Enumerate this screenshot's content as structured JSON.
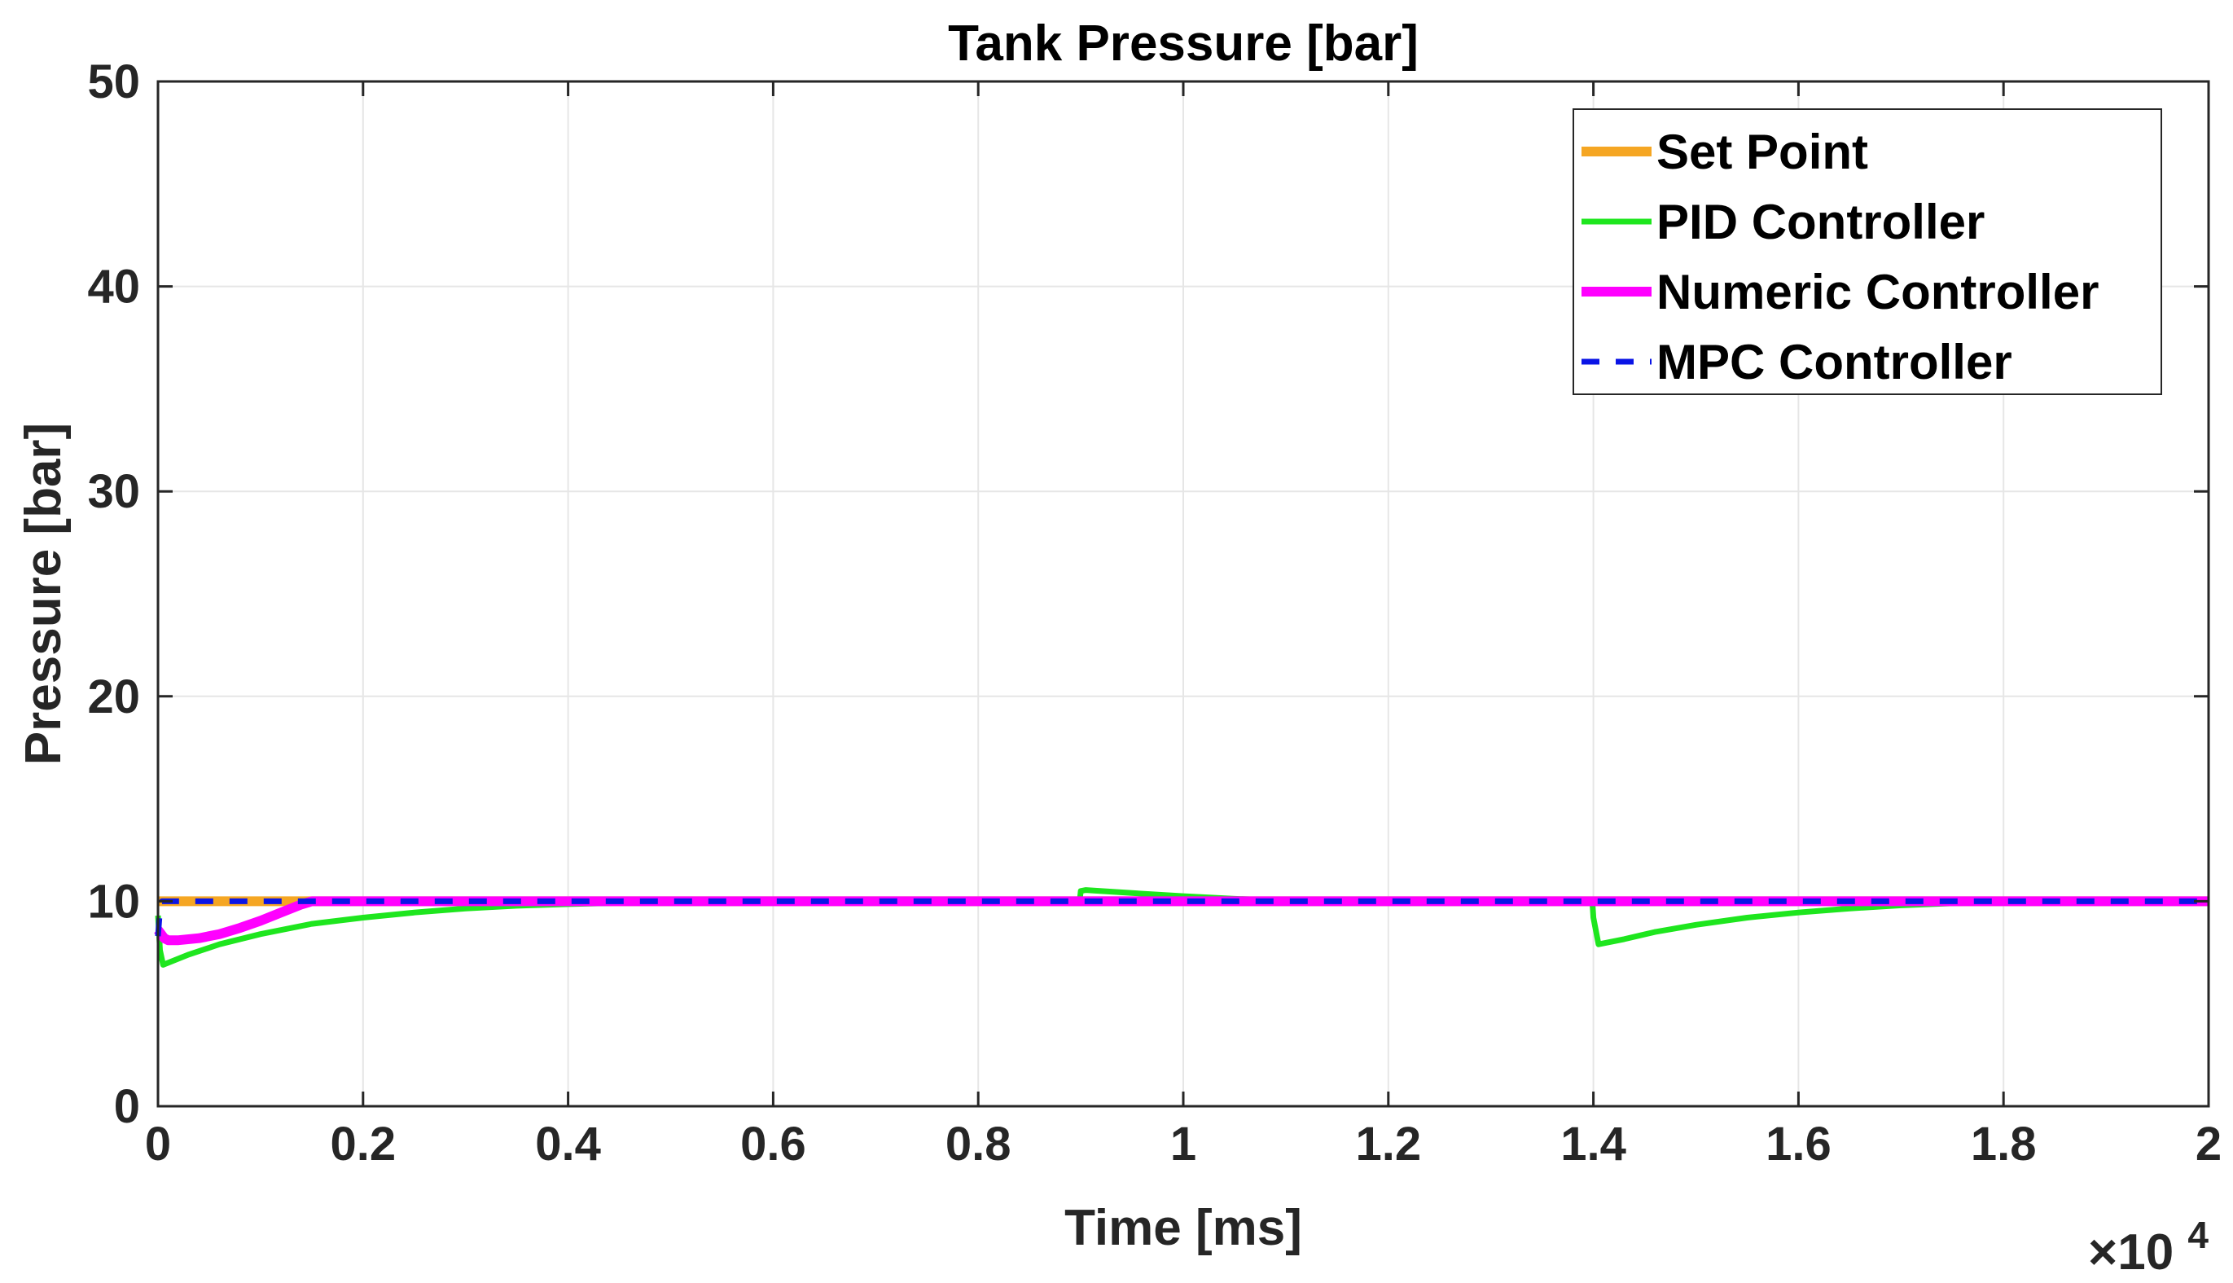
{
  "chart_data": {
    "type": "line",
    "title": "Tank Pressure [bar]",
    "xlabel": "Time [ms]",
    "ylabel": "Pressure [bar]",
    "x_exponent_label": "×10",
    "x_exponent_power": "4",
    "xlim": [
      0,
      20000
    ],
    "ylim": [
      0,
      50
    ],
    "grid": true,
    "legend_position": "top-right",
    "xticks": [
      0,
      2000,
      4000,
      6000,
      8000,
      10000,
      12000,
      14000,
      16000,
      18000,
      20000
    ],
    "xtick_labels": [
      "0",
      "0.2",
      "0.4",
      "0.6",
      "0.8",
      "1",
      "1.2",
      "1.4",
      "1.6",
      "1.8",
      "2"
    ],
    "yticks": [
      0,
      10,
      20,
      30,
      40,
      50
    ],
    "ytick_labels": [
      "0",
      "10",
      "20",
      "30",
      "40",
      "50"
    ],
    "series": [
      {
        "name": "Set Point",
        "color": "#F5A623",
        "style": "solid",
        "width": "thick",
        "x": [
          0,
          20000
        ],
        "values": [
          10,
          10
        ]
      },
      {
        "name": "PID Controller",
        "color": "#1EE61E",
        "style": "solid",
        "width": "medium",
        "x": [
          0,
          20,
          50,
          300,
          600,
          1000,
          1500,
          2000,
          2500,
          3000,
          3500,
          4000,
          4500,
          5000,
          6000,
          8000,
          8990,
          9000,
          9050,
          9500,
          10000,
          10500,
          11000,
          12000,
          13000,
          13990,
          14000,
          14050,
          14300,
          14600,
          15000,
          15500,
          16000,
          16500,
          17000,
          17500,
          18000,
          19000,
          20000
        ],
        "values": [
          9.3,
          7.6,
          6.9,
          7.4,
          7.9,
          8.4,
          8.9,
          9.2,
          9.45,
          9.65,
          9.78,
          9.86,
          9.92,
          9.96,
          10.0,
          10.0,
          10.0,
          10.5,
          10.55,
          10.4,
          10.25,
          10.12,
          10.03,
          10.0,
          10.0,
          10.0,
          9.2,
          7.9,
          8.15,
          8.5,
          8.85,
          9.2,
          9.45,
          9.65,
          9.8,
          9.9,
          9.97,
          10.0,
          10.0
        ]
      },
      {
        "name": "Numeric Controller",
        "color": "#FF00FF",
        "style": "solid",
        "width": "thick",
        "x": [
          0,
          60,
          100,
          200,
          400,
          600,
          800,
          1000,
          1200,
          1400,
          1500,
          2000,
          20000
        ],
        "values": [
          8.6,
          8.2,
          8.1,
          8.1,
          8.2,
          8.4,
          8.7,
          9.05,
          9.45,
          9.85,
          10.0,
          10.0,
          10.0
        ]
      },
      {
        "name": "MPC Controller",
        "color": "#0A14E6",
        "style": "dashed",
        "width": "medium",
        "x": [
          0,
          20,
          40,
          60,
          100,
          20000
        ],
        "values": [
          8.3,
          9.6,
          10.0,
          10.0,
          10.0,
          10.0
        ]
      }
    ]
  }
}
